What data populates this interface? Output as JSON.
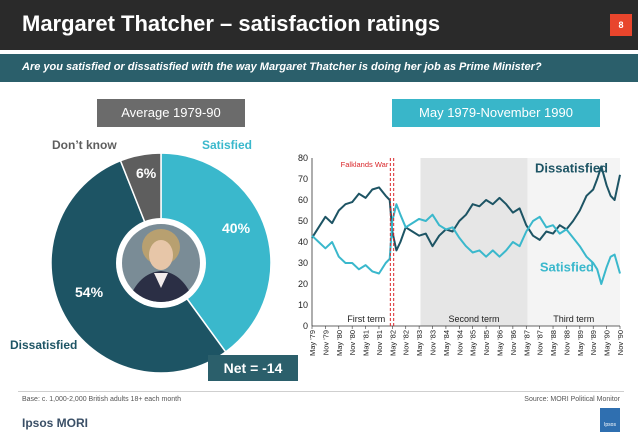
{
  "header": {
    "title": "Margaret Thatcher – satisfaction ratings",
    "page_number": "8"
  },
  "subtitle": "Are you satisfied or dissatisfied with the way Margaret Thatcher is doing her job as Prime Minister?",
  "left_panel": {
    "heading": "Average 1979-90",
    "net_label": "Net = -14"
  },
  "right_panel": {
    "heading": "May 1979-November 1990"
  },
  "footer": {
    "base": "Base: c. 1,000-2,000 British adults 18+ each month",
    "source": "Source: MORI Political Monitor",
    "logo": "Ipsos MORI",
    "logo_small": "Ipsos"
  },
  "colors": {
    "dark_teal": "#1d5464",
    "light_teal": "#3ab8cc",
    "grey": "#5e5e5e",
    "term_shade": "#e6e6e6",
    "red": "#d9262a"
  },
  "chart_data": [
    {
      "type": "pie",
      "title": "Average 1979-90",
      "slices": [
        {
          "label": "Satisfied",
          "value": 40,
          "value_label": "40%",
          "color": "#3ab8cc"
        },
        {
          "label": "Dissatisfied",
          "value": 54,
          "value_label": "54%",
          "color": "#1d5464"
        },
        {
          "label": "Don’t know",
          "value": 6,
          "value_label": "6%",
          "color": "#5e5e5e"
        }
      ]
    },
    {
      "type": "line",
      "title": "May 1979-November 1990",
      "ylim": [
        0,
        80
      ],
      "yticks": [
        0,
        10,
        20,
        30,
        40,
        50,
        60,
        70,
        80
      ],
      "xlim": [
        0,
        23
      ],
      "x_tick_labels": [
        "May '79",
        "Nov '79",
        "May '80",
        "Nov '80",
        "May '81",
        "Nov '81",
        "May '82",
        "Nov '82",
        "May '83",
        "Nov '83",
        "May '84",
        "Nov '84",
        "May '85",
        "Nov '85",
        "May '86",
        "Nov '86",
        "May '87",
        "Nov '87",
        "May '88",
        "Nov '88",
        "May '89",
        "Nov '89",
        "May '90",
        "Nov '90"
      ],
      "terms": [
        {
          "label": "First term",
          "start": 0,
          "end": 8.1,
          "shaded": false
        },
        {
          "label": "Second term",
          "start": 8.1,
          "end": 16.1,
          "shaded": true
        },
        {
          "label": "Third term",
          "start": 16.1,
          "end": 23,
          "shaded": false
        }
      ],
      "event": {
        "label": "Falklands War",
        "x": [
          5.85,
          6.1
        ]
      },
      "series": [
        {
          "name": "Dissatisfied",
          "color": "#1d5464",
          "points": [
            [
              0,
              42
            ],
            [
              0.5,
              47
            ],
            [
              1,
              52
            ],
            [
              1.5,
              49
            ],
            [
              2,
              55
            ],
            [
              2.5,
              58
            ],
            [
              3,
              59
            ],
            [
              3.5,
              63
            ],
            [
              4,
              61
            ],
            [
              4.5,
              65
            ],
            [
              5,
              66
            ],
            [
              5.5,
              62
            ],
            [
              5.8,
              60
            ],
            [
              6,
              45
            ],
            [
              6.3,
              36
            ],
            [
              6.6,
              40
            ],
            [
              7,
              47
            ],
            [
              7.5,
              45
            ],
            [
              8,
              43
            ],
            [
              8.5,
              44
            ],
            [
              9,
              38
            ],
            [
              9.5,
              43
            ],
            [
              10,
              46
            ],
            [
              10.5,
              45
            ],
            [
              11,
              50
            ],
            [
              11.5,
              53
            ],
            [
              12,
              58
            ],
            [
              12.5,
              57
            ],
            [
              13,
              60
            ],
            [
              13.5,
              58
            ],
            [
              14,
              61
            ],
            [
              14.5,
              58
            ],
            [
              15,
              54
            ],
            [
              15.5,
              56
            ],
            [
              16,
              48
            ],
            [
              16.5,
              43
            ],
            [
              17,
              41
            ],
            [
              17.5,
              45
            ],
            [
              18,
              44
            ],
            [
              18.5,
              48
            ],
            [
              19,
              46
            ],
            [
              19.5,
              50
            ],
            [
              20,
              55
            ],
            [
              20.5,
              62
            ],
            [
              21,
              65
            ],
            [
              21.3,
              70
            ],
            [
              21.6,
              76
            ],
            [
              22,
              67
            ],
            [
              22.3,
              62
            ],
            [
              22.6,
              60
            ],
            [
              23,
              72
            ]
          ]
        },
        {
          "name": "Satisfied",
          "color": "#3ab8cc",
          "points": [
            [
              0,
              43
            ],
            [
              0.5,
              40
            ],
            [
              1,
              37
            ],
            [
              1.5,
              40
            ],
            [
              2,
              33
            ],
            [
              2.5,
              30
            ],
            [
              3,
              30
            ],
            [
              3.5,
              27
            ],
            [
              4,
              29
            ],
            [
              4.5,
              26
            ],
            [
              5,
              25
            ],
            [
              5.5,
              30
            ],
            [
              5.8,
              32
            ],
            [
              6,
              50
            ],
            [
              6.3,
              58
            ],
            [
              6.6,
              53
            ],
            [
              7,
              47
            ],
            [
              7.5,
              49
            ],
            [
              8,
              51
            ],
            [
              8.5,
              50
            ],
            [
              9,
              53
            ],
            [
              9.5,
              48
            ],
            [
              10,
              46
            ],
            [
              10.5,
              47
            ],
            [
              11,
              42
            ],
            [
              11.5,
              38
            ],
            [
              12,
              35
            ],
            [
              12.5,
              36
            ],
            [
              13,
              33
            ],
            [
              13.5,
              36
            ],
            [
              14,
              33
            ],
            [
              14.5,
              36
            ],
            [
              15,
              40
            ],
            [
              15.5,
              38
            ],
            [
              16,
              45
            ],
            [
              16.5,
              50
            ],
            [
              17,
              52
            ],
            [
              17.5,
              47
            ],
            [
              18,
              48
            ],
            [
              18.5,
              44
            ],
            [
              19,
              46
            ],
            [
              19.5,
              42
            ],
            [
              20,
              38
            ],
            [
              20.5,
              33
            ],
            [
              21,
              30
            ],
            [
              21.3,
              27
            ],
            [
              21.6,
              20
            ],
            [
              22,
              28
            ],
            [
              22.3,
              33
            ],
            [
              22.6,
              34
            ],
            [
              23,
              25
            ]
          ]
        }
      ]
    }
  ]
}
